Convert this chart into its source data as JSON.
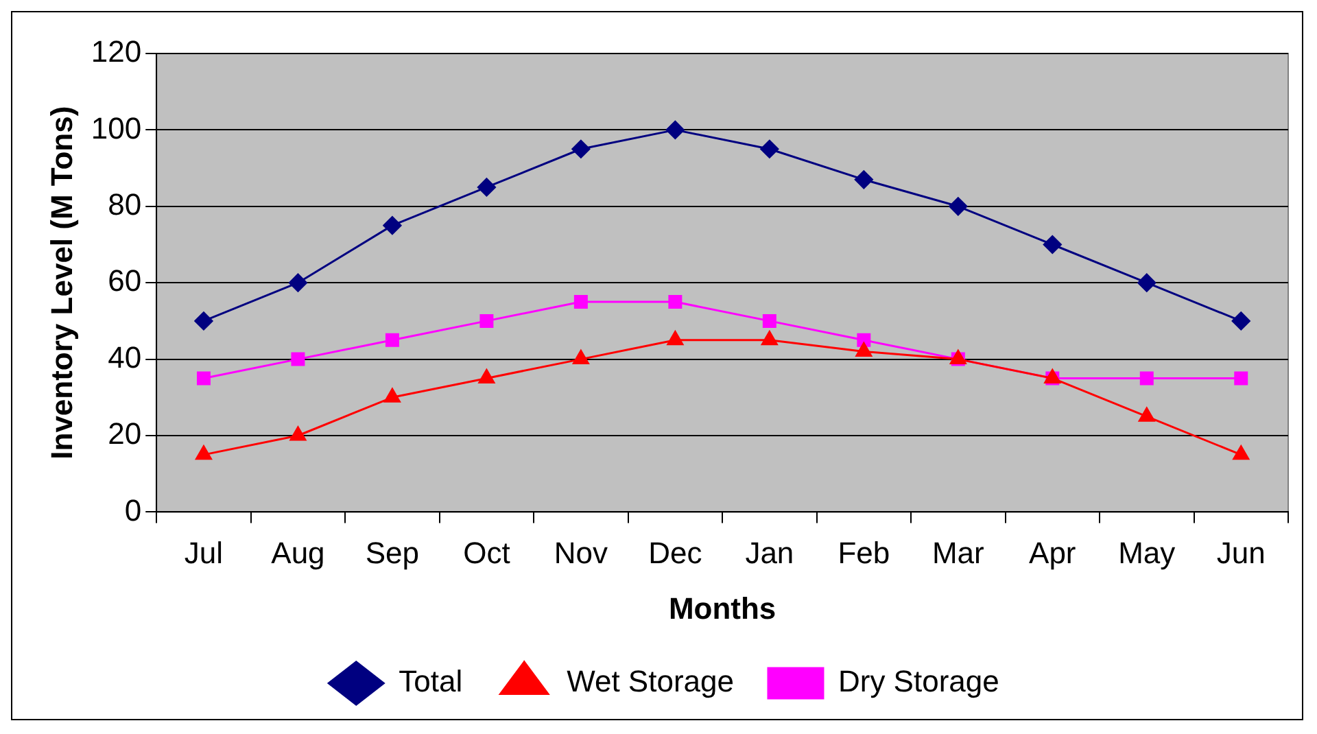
{
  "chart_data": {
    "type": "line",
    "xlabel": "Months",
    "ylabel": "Inventory Level (M Tons)",
    "categories": [
      "Jul",
      "Aug",
      "Sep",
      "Oct",
      "Nov",
      "Dec",
      "Jan",
      "Feb",
      "Mar",
      "Apr",
      "May",
      "Jun"
    ],
    "series": [
      {
        "name": "Dry Storage",
        "color": "#ff00ff",
        "marker": "square",
        "values": [
          35,
          40,
          45,
          50,
          55,
          55,
          50,
          45,
          40,
          35,
          35,
          35
        ]
      },
      {
        "name": "Wet Storage",
        "color": "#ff0000",
        "marker": "triangle",
        "values": [
          15,
          20,
          30,
          35,
          40,
          45,
          45,
          42,
          40,
          35,
          25,
          15
        ]
      },
      {
        "name": "Total",
        "color": "#000080",
        "marker": "diamond",
        "values": [
          50,
          60,
          75,
          85,
          95,
          100,
          95,
          87,
          80,
          70,
          60,
          50
        ]
      }
    ],
    "ylim": [
      0,
      120
    ],
    "yticks": [
      0,
      20,
      40,
      60,
      80,
      100,
      120
    ],
    "grid": "y",
    "legend": "bottom",
    "line_style": "solid"
  }
}
